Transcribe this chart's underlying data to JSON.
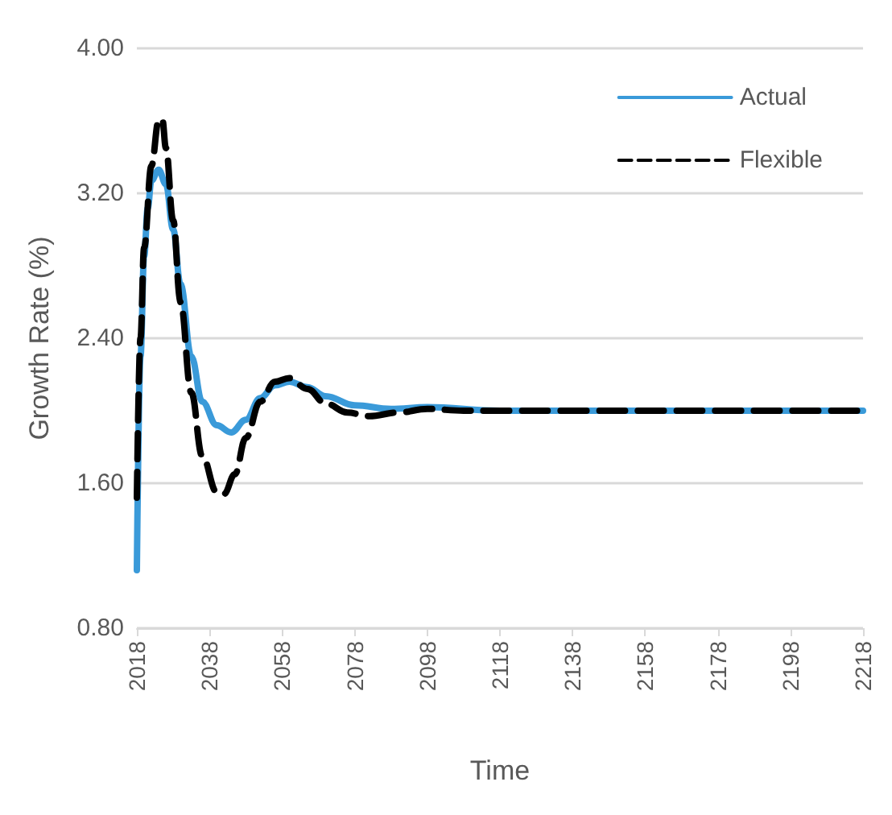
{
  "chart_data": {
    "type": "line",
    "xlabel": "Time",
    "ylabel": "Growth Rate (%)",
    "xlim": [
      2018,
      2218
    ],
    "xticks": [
      2018,
      2038,
      2058,
      2078,
      2098,
      2118,
      2138,
      2158,
      2178,
      2198,
      2218
    ],
    "ylim": [
      0.8,
      4.0
    ],
    "yticks": [
      {
        "value": 0.8,
        "label": "0.80"
      },
      {
        "value": 1.6,
        "label": "1.60"
      },
      {
        "value": 2.4,
        "label": "2.40"
      },
      {
        "value": 3.2,
        "label": "3.20"
      },
      {
        "value": 4.0,
        "label": "4.00"
      }
    ],
    "grid": "y",
    "legend": "top right",
    "marker": "none",
    "series": [
      {
        "name": "Actual",
        "color": "#3a9ad9",
        "line_style": "solid",
        "x": [
          2018,
          2019,
          2020,
          2021,
          2022,
          2024,
          2026,
          2028,
          2030,
          2033,
          2036,
          2040,
          2044,
          2048,
          2052,
          2056,
          2060,
          2065,
          2070,
          2078,
          2088,
          2098,
          2118,
          2138,
          2158,
          2178,
          2198,
          2218
        ],
        "values": [
          1.12,
          2.3,
          2.85,
          3.12,
          3.27,
          3.33,
          3.25,
          3.0,
          2.7,
          2.3,
          2.05,
          1.92,
          1.88,
          1.95,
          2.07,
          2.14,
          2.16,
          2.13,
          2.08,
          2.03,
          2.01,
          2.02,
          2.0,
          2.0,
          2.0,
          2.0,
          2.0,
          2.0
        ]
      },
      {
        "name": "Flexible",
        "color": "#000000",
        "line_style": "dashed",
        "x": [
          2018,
          2019,
          2020,
          2022,
          2024,
          2025,
          2026,
          2028,
          2030,
          2033,
          2036,
          2040,
          2042,
          2045,
          2048,
          2052,
          2056,
          2060,
          2065,
          2070,
          2076,
          2082,
          2090,
          2098,
          2108,
          2118,
          2138,
          2158,
          2178,
          2198,
          2218
        ],
        "values": [
          1.52,
          2.4,
          2.9,
          3.35,
          3.6,
          3.61,
          3.45,
          3.05,
          2.6,
          2.1,
          1.75,
          1.55,
          1.54,
          1.65,
          1.85,
          2.05,
          2.16,
          2.18,
          2.12,
          2.04,
          1.99,
          1.97,
          1.99,
          2.01,
          2.0,
          2.0,
          2.0,
          2.0,
          2.0,
          2.0,
          2.0
        ]
      }
    ]
  }
}
